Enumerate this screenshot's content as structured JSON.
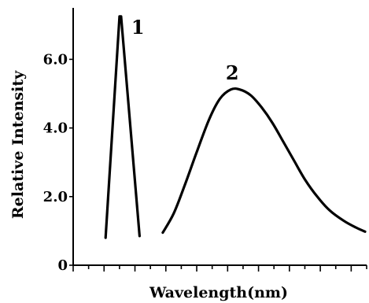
{
  "chart_data": {
    "type": "line",
    "ylabel": "Relative Intensity",
    "xlabel": "Wavelength(nm)",
    "ylim": [
      0,
      7.5
    ],
    "xlim": [
      0,
      19
    ],
    "y_ticks": [
      {
        "value": 0,
        "label": "0"
      },
      {
        "value": 2.0,
        "label": "2.0"
      },
      {
        "value": 4.0,
        "label": "4.0"
      },
      {
        "value": 6.0,
        "label": "6.0"
      }
    ],
    "x_tick_count": 20,
    "series": [
      {
        "label": "1",
        "x": [
          2.1,
          3.0,
          3.1,
          4.3
        ],
        "y": [
          0.8,
          7.25,
          7.25,
          0.85
        ]
      },
      {
        "label": "2",
        "x": [
          5.8,
          6.5,
          7.2,
          8.0,
          8.8,
          9.5,
          10.2,
          10.8,
          11.5,
          12.2,
          12.9,
          13.6,
          14.3,
          15.0,
          15.8,
          16.6,
          17.5,
          18.3,
          18.9
        ],
        "y": [
          0.95,
          1.5,
          2.3,
          3.3,
          4.25,
          4.85,
          5.12,
          5.12,
          4.95,
          4.6,
          4.15,
          3.6,
          3.05,
          2.5,
          2.0,
          1.6,
          1.3,
          1.1,
          0.98
        ]
      }
    ]
  }
}
